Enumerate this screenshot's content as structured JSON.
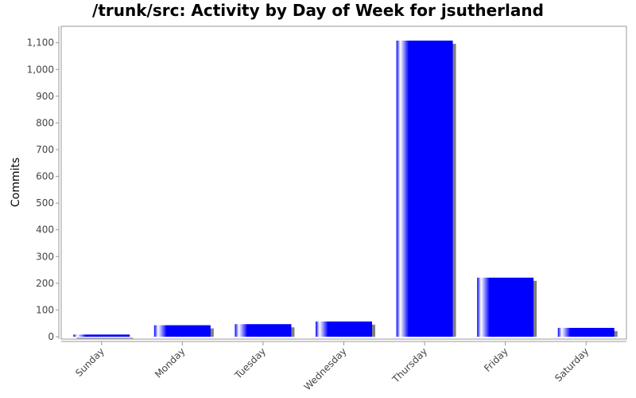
{
  "chart_data": {
    "type": "bar",
    "title": "/trunk/src: Activity by Day of Week for jsutherland",
    "xlabel": "",
    "ylabel": "Commits",
    "categories": [
      "Sunday",
      "Monday",
      "Tuesday",
      "Wednesday",
      "Thursday",
      "Friday",
      "Saturday"
    ],
    "values": [
      8,
      43,
      47,
      57,
      1108,
      221,
      33
    ],
    "ylim": [
      0,
      1150
    ],
    "yticks": [
      0,
      100,
      200,
      300,
      400,
      500,
      600,
      700,
      800,
      900,
      1000,
      1100
    ],
    "ytick_labels": [
      "0",
      "100",
      "200",
      "300",
      "400",
      "500",
      "600",
      "700",
      "800",
      "900",
      "1,000",
      "1,100"
    ],
    "grid": false,
    "legend": "none",
    "bar_color": "#0000ff",
    "shadow_color": "#808080",
    "frame_color": "#999999"
  }
}
